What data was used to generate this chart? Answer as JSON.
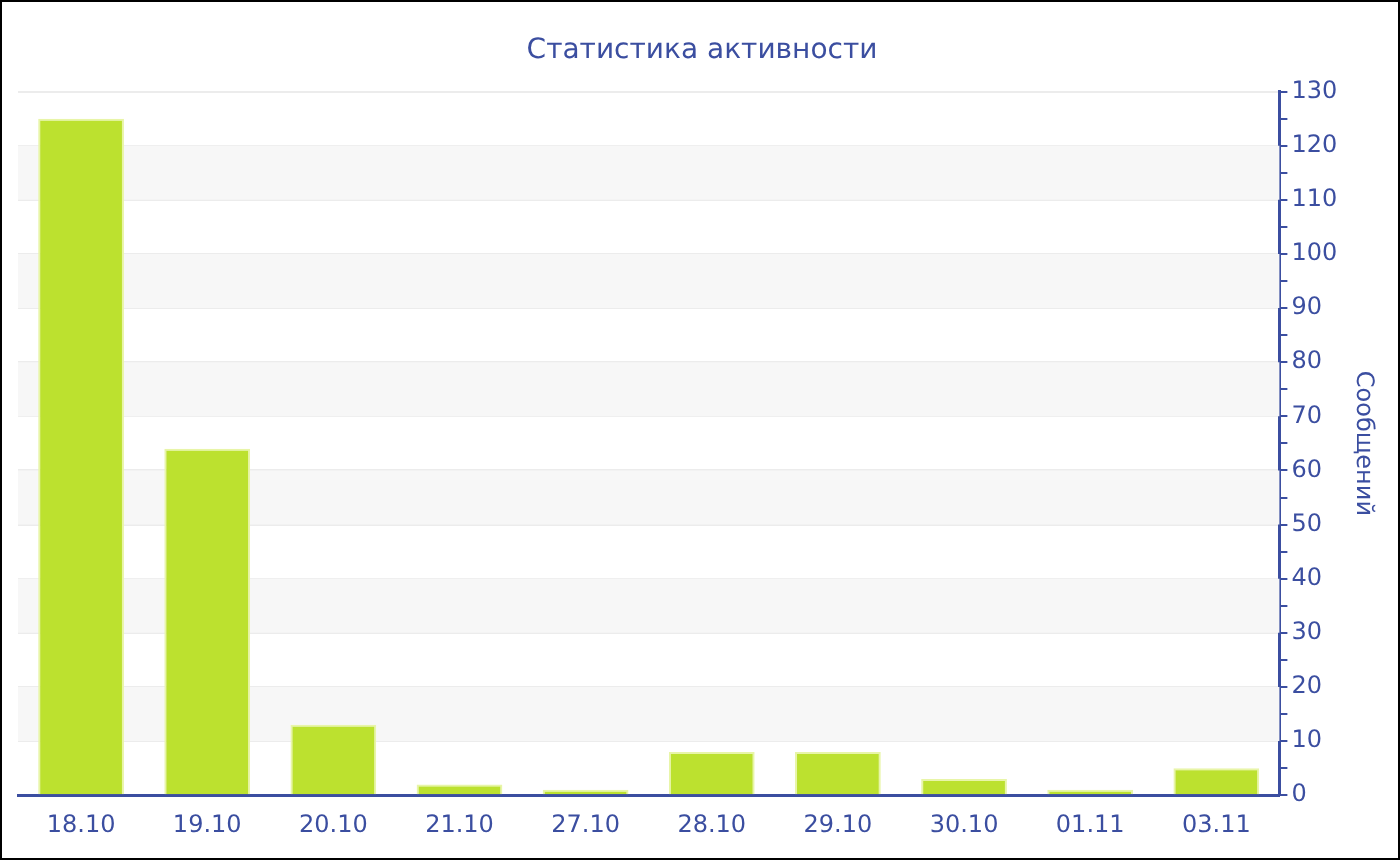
{
  "chart_data": {
    "type": "bar",
    "title": "Статистика активности",
    "ylabel": "Сообщений",
    "categories": [
      "18.10",
      "19.10",
      "20.10",
      "21.10",
      "27.10",
      "28.10",
      "29.10",
      "30.10",
      "01.11",
      "03.11"
    ],
    "values": [
      125,
      64,
      13,
      2,
      1,
      8,
      8,
      3,
      1,
      5
    ],
    "color": "#bce12f",
    "ylim": [
      0,
      130
    ],
    "yticks": [
      0,
      {
        "value": 5,
        "label": null
      },
      10,
      {
        "value": 15,
        "label": null
      },
      20,
      {
        "value": 25,
        "label": null
      },
      30,
      {
        "value": 35,
        "label": null
      },
      40,
      {
        "value": 45,
        "label": null
      },
      50,
      {
        "value": 55,
        "label": null
      },
      60,
      {
        "value": 65,
        "label": null
      },
      70,
      {
        "value": 75,
        "label": null
      },
      80,
      {
        "value": 85,
        "label": null
      },
      90,
      {
        "value": 95,
        "label": null
      },
      100,
      {
        "value": 105,
        "label": null
      },
      110,
      {
        "value": 115,
        "label": null
      },
      120,
      {
        "value": 125,
        "label": null
      },
      130
    ],
    "grid": "y"
  }
}
